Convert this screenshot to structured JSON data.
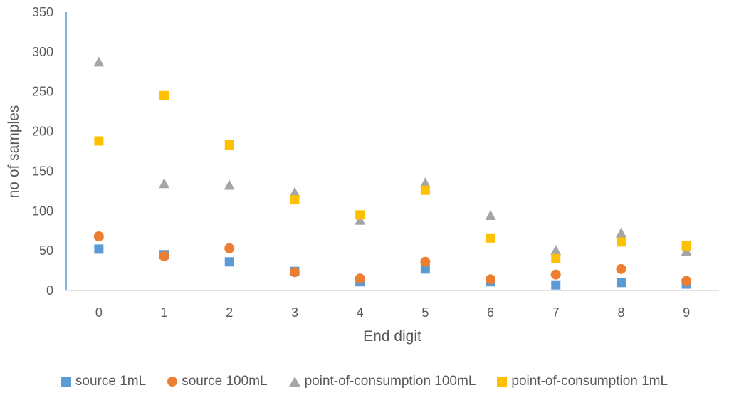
{
  "chart_data": {
    "type": "scatter",
    "xlabel": "End digit",
    "ylabel": "no of samples",
    "categories": [
      "0",
      "1",
      "2",
      "3",
      "4",
      "5",
      "6",
      "7",
      "8",
      "9"
    ],
    "ylim": [
      0,
      350
    ],
    "yticks": [
      "0",
      "50",
      "100",
      "150",
      "200",
      "250",
      "300",
      "350"
    ],
    "grid": false,
    "legend_position": "bottom",
    "series": [
      {
        "name": "source 1mL",
        "marker": "square",
        "color": "#5B9BD5",
        "values": [
          52,
          45,
          36,
          24,
          11,
          27,
          11,
          7,
          10,
          8
        ]
      },
      {
        "name": "source 100mL",
        "marker": "circle",
        "color": "#ED7D31",
        "values": [
          68,
          43,
          53,
          23,
          15,
          36,
          14,
          20,
          27,
          12
        ]
      },
      {
        "name": "point-of-consumption 100mL",
        "marker": "triangle",
        "color": "#A5A5A5",
        "values": [
          287,
          134,
          132,
          123,
          88,
          135,
          94,
          50,
          72,
          49
        ]
      },
      {
        "name": "point-of-consumption 1mL",
        "marker": "square",
        "color": "#FFC000",
        "values": [
          188,
          245,
          183,
          114,
          95,
          126,
          66,
          40,
          61,
          56
        ]
      }
    ]
  }
}
